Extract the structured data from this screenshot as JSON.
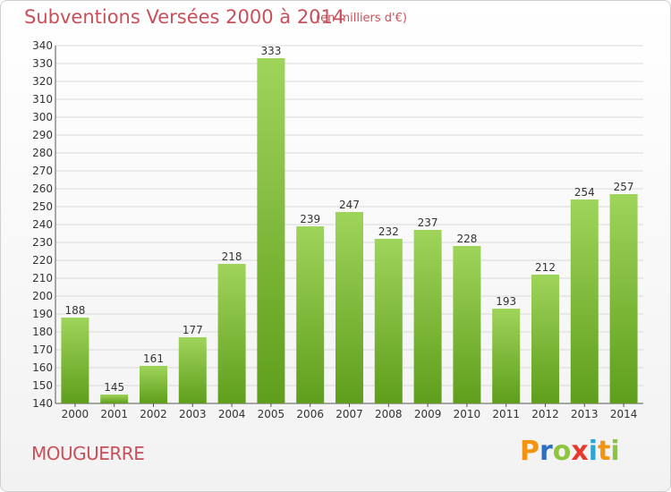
{
  "header": {
    "title": "Subventions Versées 2000 à 2014",
    "unit": "(en milliers d'€)"
  },
  "footer": {
    "commune": "MOUGUERRE",
    "logo_text": "Proxiti"
  },
  "colors": {
    "bar_light": "#9fd45a",
    "bar_dark": "#5f9e1c",
    "title": "#c8505a",
    "grid": "#d9d9d9",
    "axis": "#555555"
  },
  "chart_data": {
    "type": "bar",
    "title": "Subventions Versées 2000 à 2014",
    "xlabel": "",
    "ylabel": "",
    "categories": [
      "2000",
      "2001",
      "2002",
      "2003",
      "2004",
      "2005",
      "2006",
      "2007",
      "2008",
      "2009",
      "2010",
      "2011",
      "2012",
      "2013",
      "2014"
    ],
    "values": [
      188,
      145,
      161,
      177,
      218,
      333,
      239,
      247,
      232,
      237,
      228,
      193,
      212,
      254,
      257
    ],
    "ylim": [
      140,
      340
    ],
    "ytick_step": 10,
    "grid": true,
    "data_labels": true
  }
}
